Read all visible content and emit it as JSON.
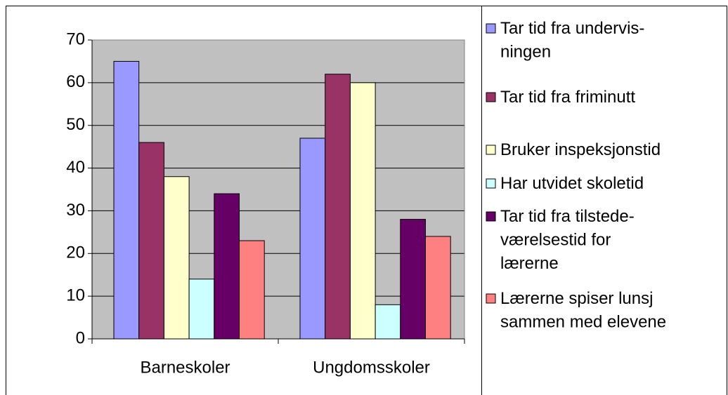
{
  "chart_data": {
    "type": "bar",
    "categories": [
      "Barneskoler",
      "Ungdomsskoler"
    ],
    "series": [
      {
        "name": "Tar tid fra undervis-\nningen",
        "color": "#9999ff",
        "values": [
          65,
          47
        ]
      },
      {
        "name": "Tar tid fra friminutt",
        "color": "#993366",
        "values": [
          46,
          62
        ]
      },
      {
        "name": "Bruker inspeksjonstid",
        "color": "#ffffcc",
        "values": [
          38,
          60
        ]
      },
      {
        "name": "Har utvidet skoletid",
        "color": "#ccffff",
        "values": [
          14,
          8
        ]
      },
      {
        "name": "Tar tid fra tilstede-\nværelsestid for\nlærerne",
        "color": "#660066",
        "values": [
          34,
          28
        ]
      },
      {
        "name": "Lærerne spiser lunsj\nsammen med elevene",
        "color": "#ff8080",
        "values": [
          23,
          24
        ]
      }
    ],
    "ylim": [
      0,
      70
    ],
    "yticks": [
      0,
      10,
      20,
      30,
      40,
      50,
      60,
      70
    ],
    "grid": true,
    "plot_background": "#c0c0c0",
    "legend": "right"
  }
}
